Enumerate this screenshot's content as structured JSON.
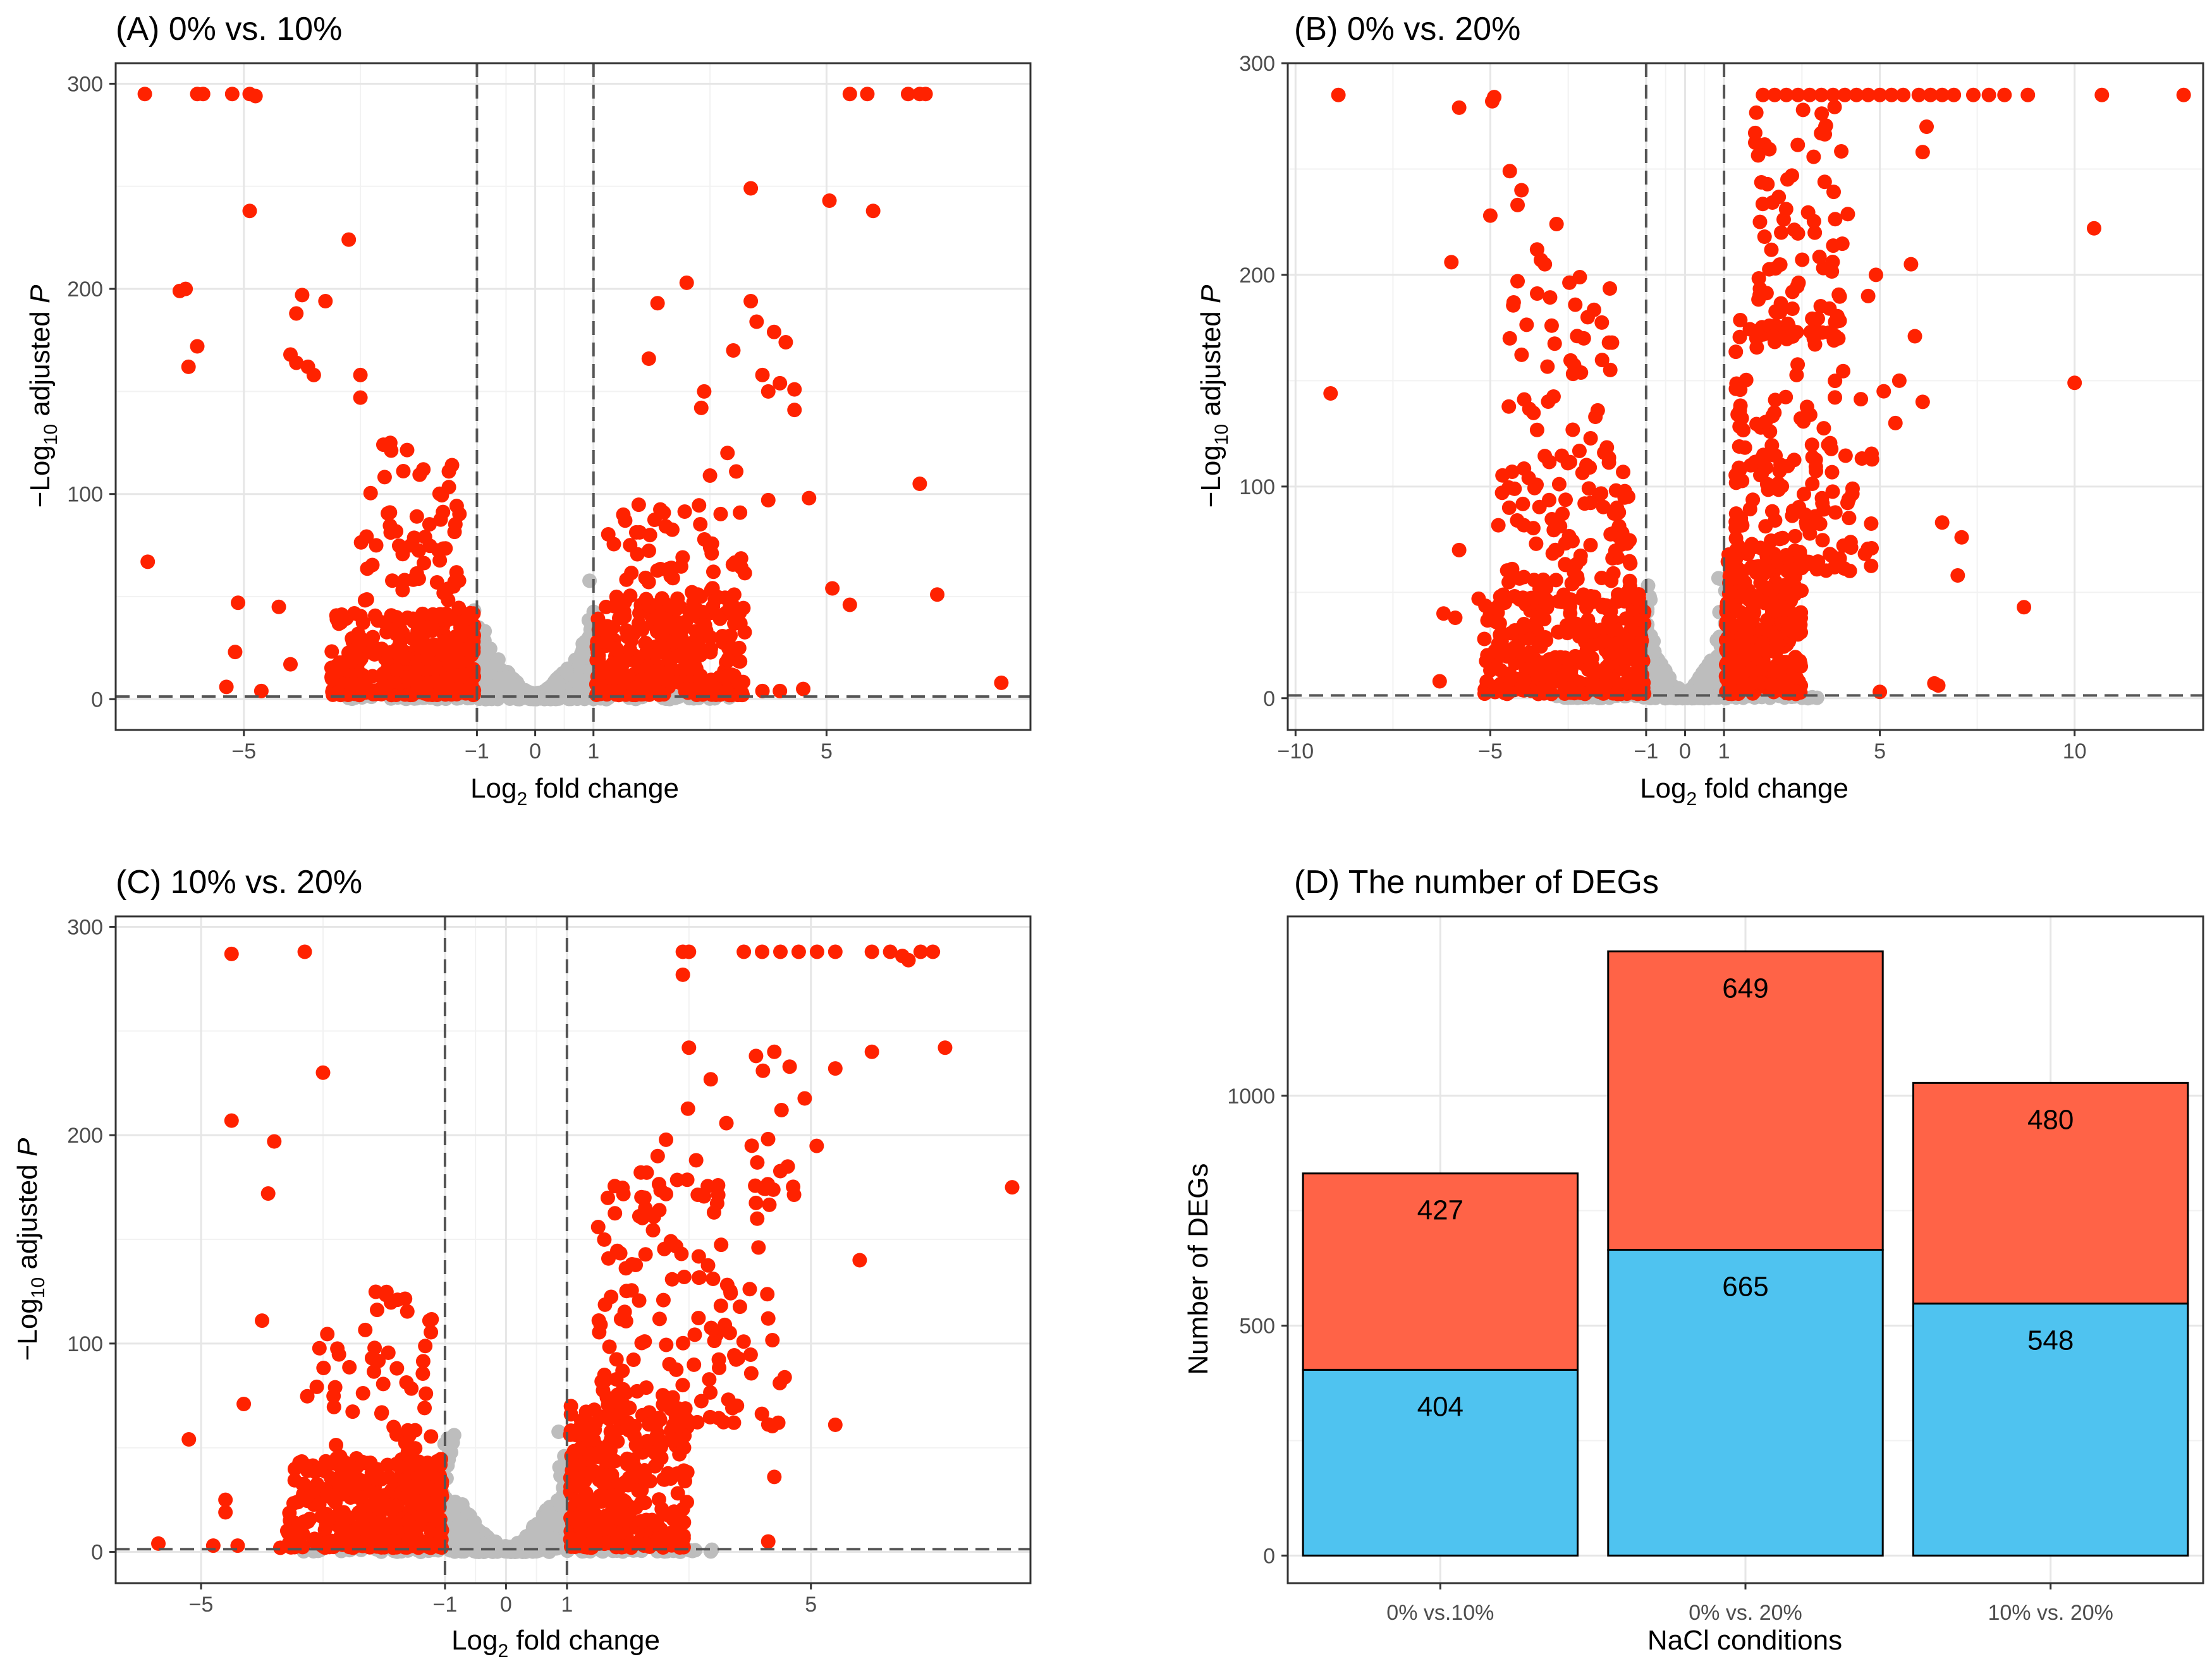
{
  "colors": {
    "significant": "#ff2200",
    "nonsignificant": "#bdbdbd",
    "grid_major": "#e6e6e6",
    "grid_minor": "#f2f2f2",
    "threshold_line": "#555555",
    "up_bar": "#ff6347",
    "down_bar": "#4fc3f0"
  },
  "chart_data": [
    {
      "id": "A",
      "type": "scatter",
      "title": "(A) 0% vs. 10%",
      "xlabel": {
        "prefix": "Log",
        "sub": "2",
        "suffix": " fold change"
      },
      "ylabel": {
        "prefix": "−Log",
        "sub": "10",
        "middle": " adjusted ",
        "italic": "P"
      },
      "xlim": [
        -7.2,
        8.5
      ],
      "ylim": [
        -15,
        310
      ],
      "xticks": [
        {
          "value": -5,
          "label": "−5"
        },
        {
          "value": -1,
          "label": "−1"
        },
        {
          "value": 0,
          "label": "0"
        },
        {
          "value": 1,
          "label": "1"
        },
        {
          "value": 5,
          "label": "5"
        }
      ],
      "yticks": [
        {
          "value": 0,
          "label": "0"
        },
        {
          "value": 100,
          "label": "100"
        },
        {
          "value": 200,
          "label": "200"
        },
        {
          "value": 300,
          "label": "300"
        }
      ],
      "thresholds": {
        "fc": [
          -1,
          1
        ],
        "p": 1.3
      },
      "sig_points": [
        [
          -6.7,
          295
        ],
        [
          -5.8,
          295
        ],
        [
          -5.7,
          295
        ],
        [
          -5.2,
          295
        ],
        [
          -4.9,
          295
        ],
        [
          -4.8,
          294
        ],
        [
          5.4,
          295
        ],
        [
          5.7,
          295
        ],
        [
          6.4,
          295
        ],
        [
          6.6,
          295
        ],
        [
          6.7,
          295
        ],
        [
          -4.9,
          238
        ],
        [
          -6.0,
          200
        ],
        [
          -6.1,
          199
        ],
        [
          -5.8,
          172
        ],
        [
          -5.95,
          162
        ],
        [
          -3.2,
          224
        ],
        [
          -4.0,
          197
        ],
        [
          -4.1,
          188
        ],
        [
          -3.6,
          194
        ],
        [
          -4.2,
          168
        ],
        [
          -4.1,
          164
        ],
        [
          -3.9,
          162
        ],
        [
          -3.8,
          158
        ],
        [
          -3.0,
          158
        ],
        [
          -3.0,
          147
        ],
        [
          -6.65,
          67
        ],
        [
          -5.1,
          47
        ],
        [
          -5.15,
          23
        ],
        [
          -4.4,
          45
        ],
        [
          -4.2,
          17
        ],
        [
          -5.3,
          6
        ],
        [
          -4.7,
          4
        ],
        [
          -3.4,
          3
        ],
        [
          3.7,
          249
        ],
        [
          5.05,
          243
        ],
        [
          5.8,
          238
        ],
        [
          2.6,
          203
        ],
        [
          2.1,
          193
        ],
        [
          3.7,
          194
        ],
        [
          3.8,
          184
        ],
        [
          4.1,
          179
        ],
        [
          4.3,
          174
        ],
        [
          3.4,
          170
        ],
        [
          3.9,
          158
        ],
        [
          4.2,
          154
        ],
        [
          4.45,
          151
        ],
        [
          4.0,
          150
        ],
        [
          4.45,
          141
        ],
        [
          2.9,
          150
        ],
        [
          2.85,
          142
        ],
        [
          1.95,
          166
        ],
        [
          3.3,
          120
        ],
        [
          3.45,
          111
        ],
        [
          3.0,
          109
        ],
        [
          4.0,
          97
        ],
        [
          4.7,
          98
        ],
        [
          6.6,
          105
        ],
        [
          5.1,
          54
        ],
        [
          5.4,
          46
        ],
        [
          6.9,
          51
        ],
        [
          8.0,
          8
        ],
        [
          4.6,
          5
        ],
        [
          4.2,
          4
        ],
        [
          3.9,
          4
        ],
        [
          2.6,
          5
        ]
      ],
      "clusters": [
        {
          "x": [
            -3.5,
            -1.05
          ],
          "y": [
            2,
            42
          ],
          "n": 360
        },
        {
          "x": [
            -3.0,
            -1.3
          ],
          "y": [
            40,
            125
          ],
          "n": 65
        },
        {
          "x": [
            1.05,
            3.6
          ],
          "y": [
            2,
            45
          ],
          "n": 300
        },
        {
          "x": [
            1.2,
            3.6
          ],
          "y": [
            45,
            95
          ],
          "n": 70
        }
      ],
      "ns_points": 320
    },
    {
      "id": "B",
      "type": "scatter",
      "title": "(B) 0% vs. 20%",
      "xlabel": {
        "prefix": "Log",
        "sub": "2",
        "suffix": " fold change"
      },
      "ylabel": {
        "prefix": "−Log",
        "sub": "10",
        "middle": " adjusted ",
        "italic": "P"
      },
      "xlim": [
        -10.2,
        13.3
      ],
      "ylim": [
        -15,
        300
      ],
      "xticks": [
        {
          "value": -10,
          "label": "−10"
        },
        {
          "value": -5,
          "label": "−5"
        },
        {
          "value": -1,
          "label": "−1"
        },
        {
          "value": 0,
          "label": "0"
        },
        {
          "value": 1,
          "label": "1"
        },
        {
          "value": 5,
          "label": "5"
        },
        {
          "value": 10,
          "label": "10"
        }
      ],
      "yticks": [
        {
          "value": 0,
          "label": "0"
        },
        {
          "value": 100,
          "label": "100"
        },
        {
          "value": 200,
          "label": "200"
        },
        {
          "value": 300,
          "label": "300"
        }
      ],
      "thresholds": {
        "fc": [
          -1,
          1
        ],
        "p": 1.3
      },
      "sig_points": [
        [
          -8.9,
          285
        ],
        [
          -4.9,
          284
        ],
        [
          -4.95,
          282
        ],
        [
          -5.8,
          279
        ],
        [
          -9.1,
          144
        ],
        [
          -6.0,
          206
        ],
        [
          10.7,
          285
        ],
        [
          12.8,
          285
        ],
        [
          10.5,
          222
        ],
        [
          10.0,
          149
        ],
        [
          8.7,
          43
        ],
        [
          7.1,
          76
        ],
        [
          6.6,
          83
        ],
        [
          7.0,
          58
        ],
        [
          6.4,
          7
        ],
        [
          6.5,
          6
        ],
        [
          5.0,
          3
        ],
        [
          2.0,
          285
        ],
        [
          2.3,
          285
        ],
        [
          2.6,
          285
        ],
        [
          2.9,
          285
        ],
        [
          3.2,
          285
        ],
        [
          3.5,
          285
        ],
        [
          3.8,
          285
        ],
        [
          4.1,
          285
        ],
        [
          4.4,
          285
        ],
        [
          4.7,
          285
        ],
        [
          5.0,
          285
        ],
        [
          5.3,
          285
        ],
        [
          5.6,
          285
        ],
        [
          6.0,
          285
        ],
        [
          6.3,
          285
        ],
        [
          6.6,
          285
        ],
        [
          6.9,
          285
        ],
        [
          7.4,
          285
        ],
        [
          7.8,
          285
        ],
        [
          8.2,
          285
        ],
        [
          8.8,
          285
        ],
        [
          6.2,
          270
        ],
        [
          6.1,
          258
        ],
        [
          5.8,
          205
        ],
        [
          5.9,
          171
        ],
        [
          5.5,
          150
        ],
        [
          5.4,
          130
        ],
        [
          6.1,
          140
        ],
        [
          4.9,
          200
        ],
        [
          5.1,
          145
        ],
        [
          4.7,
          190
        ],
        [
          4.3,
          99
        ],
        [
          -4.5,
          249
        ],
        [
          -4.2,
          240
        ],
        [
          -4.3,
          233
        ],
        [
          -5.0,
          228
        ],
        [
          -3.3,
          224
        ],
        [
          -3.6,
          205
        ],
        [
          -3.8,
          212
        ],
        [
          -3.7,
          207
        ],
        [
          -4.3,
          197
        ],
        [
          -4.4,
          187
        ],
        [
          -4.5,
          170
        ],
        [
          -2.5,
          180
        ],
        [
          -2.6,
          170
        ],
        [
          -6.2,
          40
        ],
        [
          -6.3,
          8
        ],
        [
          -5.8,
          70
        ],
        [
          -5.3,
          47
        ],
        [
          -5.9,
          38
        ]
      ],
      "clusters": [
        {
          "x": [
            -5.2,
            -1.05
          ],
          "y": [
            2,
            50
          ],
          "n": 330
        },
        {
          "x": [
            -4.8,
            -1.4
          ],
          "y": [
            45,
            110
          ],
          "n": 110
        },
        {
          "x": [
            -4.6,
            -1.8
          ],
          "y": [
            110,
            200
          ],
          "n": 45
        },
        {
          "x": [
            1.05,
            3.0
          ],
          "y": [
            2,
            70
          ],
          "n": 330
        },
        {
          "x": [
            1.3,
            4.8
          ],
          "y": [
            60,
            180
          ],
          "n": 170
        },
        {
          "x": [
            1.8,
            4.2
          ],
          "y": [
            170,
            282
          ],
          "n": 90
        }
      ],
      "ns_points": 300
    },
    {
      "id": "C",
      "type": "scatter",
      "title": "(C) 10% vs. 20%",
      "xlabel": {
        "prefix": "Log",
        "sub": "2",
        "suffix": " fold change"
      },
      "ylabel": {
        "prefix": "−Log",
        "sub": "10",
        "middle": " adjusted ",
        "italic": "P"
      },
      "xlim": [
        -6.4,
        8.6
      ],
      "ylim": [
        -15,
        305
      ],
      "xticks": [
        {
          "value": -5,
          "label": "−5"
        },
        {
          "value": -1,
          "label": "−1"
        },
        {
          "value": 0,
          "label": "0"
        },
        {
          "value": 1,
          "label": "1"
        },
        {
          "value": 5,
          "label": "5"
        }
      ],
      "yticks": [
        {
          "value": 0,
          "label": "0"
        },
        {
          "value": 100,
          "label": "100"
        },
        {
          "value": 200,
          "label": "200"
        },
        {
          "value": 300,
          "label": "300"
        }
      ],
      "thresholds": {
        "fc": [
          -1,
          1
        ],
        "p": 1.3
      },
      "sig_points": [
        [
          -4.5,
          287
        ],
        [
          -3.3,
          288
        ],
        [
          -3.0,
          230
        ],
        [
          -4.5,
          207
        ],
        [
          -3.8,
          197
        ],
        [
          -3.9,
          172
        ],
        [
          -4.0,
          111
        ],
        [
          -4.3,
          71
        ],
        [
          -5.2,
          54
        ],
        [
          -4.6,
          25
        ],
        [
          -4.6,
          19
        ],
        [
          -5.7,
          4
        ],
        [
          -4.4,
          3
        ],
        [
          -3.7,
          2
        ],
        [
          -4.8,
          3
        ],
        [
          2.9,
          288
        ],
        [
          3.0,
          288
        ],
        [
          3.9,
          288
        ],
        [
          4.2,
          288
        ],
        [
          4.5,
          288
        ],
        [
          4.8,
          288
        ],
        [
          5.1,
          288
        ],
        [
          5.4,
          288
        ],
        [
          6.0,
          288
        ],
        [
          6.3,
          288
        ],
        [
          6.5,
          286
        ],
        [
          6.6,
          284
        ],
        [
          6.8,
          288
        ],
        [
          7.0,
          288
        ],
        [
          2.9,
          277
        ],
        [
          3.0,
          242
        ],
        [
          4.4,
          240
        ],
        [
          4.1,
          238
        ],
        [
          5.4,
          232
        ],
        [
          6.0,
          240
        ],
        [
          7.2,
          242
        ],
        [
          8.3,
          175
        ],
        [
          5.8,
          140
        ],
        [
          4.3,
          112
        ],
        [
          5.4,
          61
        ],
        [
          4.4,
          36
        ],
        [
          4.3,
          5
        ]
      ],
      "clusters": [
        {
          "x": [
            -3.6,
            -1.05
          ],
          "y": [
            2,
            45
          ],
          "n": 380
        },
        {
          "x": [
            -3.3,
            -1.2
          ],
          "y": [
            40,
            125
          ],
          "n": 65
        },
        {
          "x": [
            1.05,
            3.0
          ],
          "y": [
            2,
            70
          ],
          "n": 340
        },
        {
          "x": [
            1.5,
            4.6
          ],
          "y": [
            60,
            180
          ],
          "n": 150
        },
        {
          "x": [
            2.2,
            5.2
          ],
          "y": [
            170,
            235
          ],
          "n": 30
        }
      ],
      "ns_points": 300
    },
    {
      "id": "D",
      "type": "bar",
      "stacked": true,
      "title": "(D) The number of DEGs",
      "xlabel": "NaCl conditions",
      "ylabel": "Number of DEGs",
      "categories": [
        "0% vs.10%",
        "0% vs. 20%",
        "10% vs. 20%"
      ],
      "series": [
        {
          "name": "down",
          "values": [
            404,
            665,
            548
          ]
        },
        {
          "name": "up",
          "values": [
            427,
            649,
            480
          ]
        }
      ],
      "labels": {
        "down": [
          "404",
          "665",
          "548"
        ],
        "up": [
          "427",
          "649",
          "480"
        ]
      },
      "ylim": [
        -60,
        1390
      ],
      "yticks": [
        {
          "value": 0,
          "label": "0"
        },
        {
          "value": 500,
          "label": "500"
        },
        {
          "value": 1000,
          "label": "1000"
        }
      ]
    }
  ]
}
